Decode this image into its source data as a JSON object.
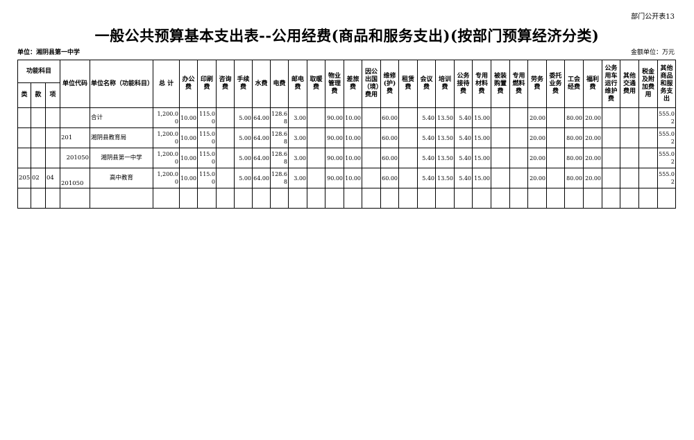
{
  "header": {
    "form_code": "部门公开表13",
    "title": "一般公共预算基本支出表--公用经费(商品和服务支出)(按部门预算经济分类)",
    "unit": "单位：湘阴县第一中学",
    "money_unit": "金额单位：万元"
  },
  "columns": {
    "group": "功能科目",
    "sub": [
      "类",
      "款",
      "项"
    ],
    "rest": [
      "单位代码",
      "单位名称（功能科目）",
      "总 计",
      "办公费",
      "印刷费",
      "咨询费",
      "手续费",
      "水费",
      "电费",
      "邮电费",
      "取暖费",
      "物业管理费",
      "差旅费",
      "因公出国（境）费用",
      "维修(护)费",
      "租赁费",
      "会议费",
      "培训费",
      "公务接待费",
      "专用材料费",
      "被装购置费",
      "专用燃料费",
      "劳务费",
      "委托业务费",
      "工会经费",
      "福利费",
      "公务用车运行维护费",
      "其他交通费用",
      "税金及附加费用",
      "其他商品和服务支出"
    ]
  },
  "rows": [
    [
      "",
      "",
      "",
      "",
      "合计",
      "1,200.00",
      "10.00",
      "115.00",
      "",
      "5.00",
      "64.00",
      "128.68",
      "3.00",
      "",
      "90.00",
      "10.00",
      "",
      "60.00",
      "",
      "5.40",
      "13.50",
      "5.40",
      "15.00",
      "",
      "",
      "20.00",
      "",
      "80.00",
      "20.00",
      "",
      "",
      "",
      "555.02"
    ],
    [
      "",
      "",
      "",
      "201",
      "湘阴县教育局",
      "1,200.00",
      "10.00",
      "115.00",
      "",
      "5.00",
      "64.00",
      "128.68",
      "3.00",
      "",
      "90.00",
      "10.00",
      "",
      "60.00",
      "",
      "5.40",
      "13.50",
      "5.40",
      "15.00",
      "",
      "",
      "20.00",
      "",
      "80.00",
      "20.00",
      "",
      "",
      "",
      "555.02"
    ],
    [
      "",
      "",
      "",
      "201050",
      "湘阴县第一中学",
      "1,200.00",
      "10.00",
      "115.00",
      "",
      "5.00",
      "64.00",
      "128.68",
      "3.00",
      "",
      "90.00",
      "10.00",
      "",
      "60.00",
      "",
      "5.40",
      "13.50",
      "5.40",
      "15.00",
      "",
      "",
      "20.00",
      "",
      "80.00",
      "20.00",
      "",
      "",
      "",
      "555.02"
    ],
    [
      "205",
      "02",
      "04",
      "201050",
      "高中教育",
      "1,200.00",
      "10.00",
      "115.00",
      "",
      "5.00",
      "64.00",
      "128.68",
      "3.00",
      "",
      "90.00",
      "10.00",
      "",
      "60.00",
      "",
      "5.40",
      "13.50",
      "5.40",
      "15.00",
      "",
      "",
      "20.00",
      "",
      "80.00",
      "20.00",
      "",
      "",
      "",
      "555.02"
    ],
    [
      "",
      "",
      "",
      "",
      "",
      "",
      "",
      "",
      "",
      "",
      "",
      "",
      "",
      "",
      "",
      "",
      "",
      "",
      "",
      "",
      "",
      "",
      "",
      "",
      "",
      "",
      "",
      "",
      "",
      "",
      "",
      "",
      ""
    ]
  ]
}
